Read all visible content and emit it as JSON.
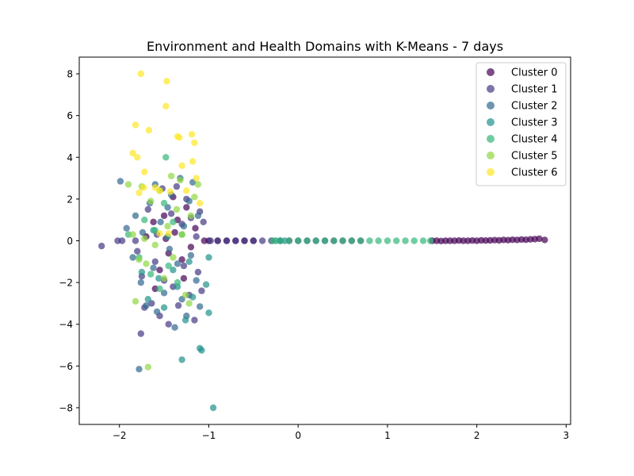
{
  "chart_data": {
    "type": "scatter",
    "title": "Environment and Health Domains with K-Means - 7 days",
    "xlabel": "",
    "ylabel": "",
    "xlim": [
      -2.45,
      3.05
    ],
    "ylim": [
      -8.8,
      8.8
    ],
    "xticks": [
      -2,
      -1,
      0,
      1,
      2,
      3
    ],
    "xtick_labels": [
      "−2",
      "−1",
      "0",
      "1",
      "2",
      "3"
    ],
    "yticks": [
      -8,
      -6,
      -4,
      -2,
      0,
      2,
      4,
      6,
      8
    ],
    "ytick_labels": [
      "−8",
      "−6",
      "−4",
      "−2",
      "0",
      "2",
      "4",
      "6",
      "8"
    ],
    "grid": false,
    "legend_position": "top-right",
    "series": [
      {
        "name": "Cluster 0",
        "color": "#440154",
        "points": [
          [
            -1.62,
            0.9
          ],
          [
            -1.5,
            1.2
          ],
          [
            -1.45,
            -0.6
          ],
          [
            -1.38,
            0.4
          ],
          [
            -1.3,
            -0.9
          ],
          [
            -1.25,
            1.6
          ],
          [
            -1.55,
            -1.4
          ],
          [
            -1.7,
            0.2
          ],
          [
            -1.2,
            -0.3
          ],
          [
            -1.4,
            2.1
          ],
          [
            -1.6,
            -2.3
          ],
          [
            -1.35,
            1.0
          ],
          [
            -1.48,
            0.1
          ],
          [
            -1.28,
            -1.8
          ],
          [
            -1.15,
            0.6
          ],
          [
            -1.05,
            0.0
          ],
          [
            -1.0,
            0.0
          ],
          [
            -0.9,
            0.0
          ],
          [
            -0.8,
            0.0
          ],
          [
            -0.7,
            0.0
          ],
          [
            -0.6,
            0.0
          ],
          [
            -0.5,
            0.0
          ],
          [
            1.5,
            0.0
          ],
          [
            1.55,
            0.0
          ],
          [
            1.6,
            -0.01
          ],
          [
            1.65,
            0.0
          ],
          [
            1.7,
            0.0
          ],
          [
            1.75,
            0.0
          ],
          [
            1.8,
            0.01
          ],
          [
            1.85,
            0.0
          ],
          [
            1.9,
            0.0
          ],
          [
            1.95,
            0.01
          ],
          [
            2.0,
            0.0
          ],
          [
            2.05,
            0.02
          ],
          [
            2.1,
            0.01
          ],
          [
            2.15,
            0.02
          ],
          [
            2.2,
            0.03
          ],
          [
            2.25,
            0.02
          ],
          [
            2.3,
            0.04
          ],
          [
            2.35,
            0.03
          ],
          [
            2.4,
            0.05
          ],
          [
            2.45,
            0.04
          ],
          [
            2.5,
            0.06
          ],
          [
            2.55,
            0.05
          ],
          [
            2.6,
            0.07
          ],
          [
            2.65,
            0.08
          ],
          [
            2.7,
            0.1
          ],
          [
            2.76,
            0.04
          ]
        ]
      },
      {
        "name": "Cluster 1",
        "color": "#443983",
        "points": [
          [
            -2.2,
            -0.25
          ],
          [
            -2.02,
            0.0
          ],
          [
            -1.97,
            0.0
          ],
          [
            -1.82,
            0.0
          ],
          [
            -1.76,
            -4.45
          ],
          [
            -1.75,
            -1.7
          ],
          [
            -1.72,
            -3.2
          ],
          [
            -1.8,
            -0.5
          ],
          [
            -1.68,
            1.5
          ],
          [
            -1.64,
            -3.0
          ],
          [
            -1.6,
            -1.0
          ],
          [
            -1.58,
            0.3
          ],
          [
            -1.55,
            -3.6
          ],
          [
            -1.52,
            2.5
          ],
          [
            -1.5,
            -1.9
          ],
          [
            -1.45,
            -4.0
          ],
          [
            -1.42,
            1.3
          ],
          [
            -1.4,
            -2.2
          ],
          [
            -1.36,
            2.6
          ],
          [
            -1.34,
            -3.1
          ],
          [
            -1.3,
            0.8
          ],
          [
            -1.28,
            -1.2
          ],
          [
            -1.25,
            2.0
          ],
          [
            -1.22,
            -2.6
          ],
          [
            -1.2,
            1.1
          ],
          [
            -1.16,
            -3.8
          ],
          [
            -1.14,
            0.2
          ],
          [
            -1.12,
            -1.5
          ],
          [
            -1.1,
            1.4
          ],
          [
            -1.08,
            -2.4
          ],
          [
            -1.06,
            0.9
          ],
          [
            -0.98,
            0.0
          ],
          [
            -0.9,
            0.0
          ],
          [
            -0.8,
            0.0
          ],
          [
            -0.7,
            0.0
          ],
          [
            -0.6,
            0.0
          ],
          [
            -0.5,
            0.0
          ],
          [
            -0.4,
            0.0
          ],
          [
            -0.3,
            0.0
          ],
          [
            -0.2,
            0.0
          ],
          [
            -0.1,
            0.0
          ],
          [
            0.0,
            0.0
          ],
          [
            0.1,
            0.0
          ],
          [
            0.2,
            0.0
          ],
          [
            0.3,
            0.0
          ],
          [
            0.4,
            0.0
          ],
          [
            0.5,
            0.0
          ],
          [
            0.6,
            0.0
          ],
          [
            0.7,
            0.0
          ]
        ]
      },
      {
        "name": "Cluster 2",
        "color": "#31688e",
        "points": [
          [
            -1.99,
            2.85
          ],
          [
            -1.92,
            0.6
          ],
          [
            -1.85,
            -0.8
          ],
          [
            -1.82,
            1.2
          ],
          [
            -1.78,
            -6.15
          ],
          [
            -1.76,
            -2.0
          ],
          [
            -1.74,
            0.4
          ],
          [
            -1.7,
            -3.1
          ],
          [
            -1.66,
            1.8
          ],
          [
            -1.62,
            -1.3
          ],
          [
            -1.6,
            2.7
          ],
          [
            -1.58,
            -3.4
          ],
          [
            -1.54,
            0.9
          ],
          [
            -1.5,
            -2.5
          ],
          [
            -1.46,
            1.6
          ],
          [
            -1.44,
            -0.4
          ],
          [
            -1.42,
            2.2
          ],
          [
            -1.38,
            -4.15
          ],
          [
            -1.35,
            -1.1
          ],
          [
            -1.32,
            3.0
          ],
          [
            -1.3,
            -2.8
          ],
          [
            -1.28,
            0.7
          ],
          [
            -1.25,
            -3.6
          ],
          [
            -1.22,
            1.9
          ],
          [
            -1.2,
            -0.7
          ],
          [
            -1.18,
            2.8
          ],
          [
            -1.14,
            -1.9
          ],
          [
            -1.12,
            1.2
          ],
          [
            -1.1,
            -3.15
          ]
        ]
      },
      {
        "name": "Cluster 3",
        "color": "#21918c",
        "points": [
          [
            -1.75,
            -1.5
          ],
          [
            -1.68,
            -2.8
          ],
          [
            -1.62,
            0.5
          ],
          [
            -1.56,
            -1.8
          ],
          [
            -1.5,
            -3.2
          ],
          [
            -1.46,
            0.2
          ],
          [
            -1.4,
            -1.4
          ],
          [
            -1.35,
            -2.2
          ],
          [
            -1.3,
            -5.7
          ],
          [
            -1.26,
            -3.8
          ],
          [
            -1.22,
            -1.0
          ],
          [
            -1.18,
            -2.7
          ],
          [
            -1.1,
            -5.15
          ],
          [
            -1.08,
            -5.25
          ],
          [
            -1.03,
            -2.1
          ],
          [
            -1.0,
            -3.45
          ],
          [
            -1.0,
            -0.8
          ],
          [
            -0.95,
            -8.0
          ],
          [
            -0.25,
            0.0
          ],
          [
            -0.2,
            0.0
          ],
          [
            -0.15,
            0.0
          ]
        ]
      },
      {
        "name": "Cluster 4",
        "color": "#35b779",
        "points": [
          [
            -1.9,
            0.3
          ],
          [
            -1.78,
            -0.8
          ],
          [
            -1.72,
            1.0
          ],
          [
            -1.65,
            -1.6
          ],
          [
            -1.6,
            0.5
          ],
          [
            -1.55,
            -2.3
          ],
          [
            -1.5,
            1.8
          ],
          [
            -1.48,
            4.0
          ],
          [
            -1.45,
            -1.2
          ],
          [
            -1.4,
            0.9
          ],
          [
            -1.35,
            -2.0
          ],
          [
            -1.3,
            0.3
          ],
          [
            -0.28,
            0.0
          ],
          [
            -0.2,
            0.0
          ],
          [
            -0.1,
            0.0
          ],
          [
            0.0,
            0.0
          ],
          [
            0.1,
            0.0
          ],
          [
            0.2,
            0.0
          ],
          [
            0.3,
            0.0
          ],
          [
            0.4,
            0.0
          ],
          [
            0.5,
            0.0
          ],
          [
            0.6,
            0.0
          ],
          [
            0.7,
            0.0
          ],
          [
            0.8,
            0.0
          ],
          [
            0.9,
            0.0
          ],
          [
            1.0,
            0.0
          ],
          [
            1.1,
            0.0
          ],
          [
            1.2,
            0.0
          ],
          [
            1.3,
            0.0
          ],
          [
            1.4,
            0.0
          ],
          [
            1.48,
            0.0
          ]
        ]
      },
      {
        "name": "Cluster 5",
        "color": "#90d743",
        "points": [
          [
            -1.9,
            2.7
          ],
          [
            -1.85,
            0.3
          ],
          [
            -1.82,
            -2.9
          ],
          [
            -1.78,
            -0.9
          ],
          [
            -1.75,
            2.6
          ],
          [
            -1.72,
            0.1
          ],
          [
            -1.7,
            -1.1
          ],
          [
            -1.68,
            -6.05
          ],
          [
            -1.65,
            1.9
          ],
          [
            -1.6,
            -0.2
          ],
          [
            -1.55,
            2.4
          ],
          [
            -1.5,
            -1.8
          ],
          [
            -1.46,
            0.7
          ],
          [
            -1.42,
            3.1
          ],
          [
            -1.4,
            -0.8
          ],
          [
            -1.36,
            1.5
          ],
          [
            -1.32,
            2.9
          ],
          [
            -1.3,
            0.3
          ],
          [
            -1.26,
            -2.6
          ],
          [
            -1.22,
            -3.0
          ],
          [
            -1.2,
            1.2
          ],
          [
            -1.16,
            2.1
          ],
          [
            -1.12,
            2.7
          ]
        ]
      },
      {
        "name": "Cluster 6",
        "color": "#fde725",
        "points": [
          [
            -1.76,
            8.0
          ],
          [
            -1.47,
            7.65
          ],
          [
            -1.82,
            5.55
          ],
          [
            -1.67,
            5.3
          ],
          [
            -1.48,
            6.45
          ],
          [
            -1.35,
            5.0
          ],
          [
            -1.33,
            4.95
          ],
          [
            -1.19,
            5.1
          ],
          [
            -1.16,
            4.7
          ],
          [
            -1.85,
            4.2
          ],
          [
            -1.8,
            4.0
          ],
          [
            -1.72,
            3.3
          ],
          [
            -1.3,
            3.6
          ],
          [
            -1.18,
            3.8
          ],
          [
            -1.78,
            2.3
          ],
          [
            -1.73,
            2.55
          ],
          [
            -1.6,
            2.55
          ],
          [
            -1.55,
            2.4
          ],
          [
            -1.43,
            2.35
          ],
          [
            -1.25,
            2.4
          ],
          [
            -1.14,
            3.0
          ],
          [
            -1.1,
            1.8
          ],
          [
            -1.45,
            0.35
          ],
          [
            -1.55,
            0.35
          ]
        ]
      }
    ]
  }
}
